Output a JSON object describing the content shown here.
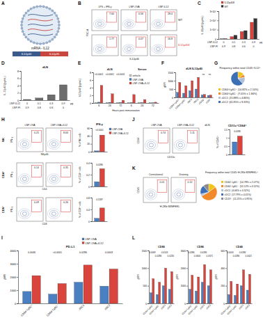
{
  "panel_labels": [
    "A",
    "B",
    "C",
    "D",
    "E",
    "F",
    "G",
    "H",
    "I",
    "J",
    "K",
    "L"
  ],
  "diagram": {
    "title": "mRNA - IL12",
    "segments": [
      "IL12p40",
      "IL12p35"
    ]
  },
  "flow_panels": [
    {
      "columns": [
        "LPS + IFN-γ",
        "LNP-OVA",
        "LNP-IL12"
      ],
      "rows": [
        "WT",
        "IL12p40fl"
      ],
      "x_label": "IL12p40",
      "y_label": "FSC-A",
      "gates": [
        [
          "7.60",
          "0.56",
          "28.4"
        ],
        [
          "1.77",
          "0.07",
          "16.8"
        ]
      ]
    },
    {
      "columns": [
        "LNP-OVA",
        "LNP-OVA+IL12"
      ],
      "rows": [
        "NK",
        "CD4⁺",
        "CD8⁺"
      ],
      "x_labels": [
        "NKp46",
        "CD4",
        "CD8"
      ],
      "y_label": "IFN-γ",
      "gates": [
        [
          "0.25",
          "8.63"
        ],
        [
          "0.14",
          "0.35"
        ],
        [
          "0.09",
          "0.26"
        ]
      ]
    },
    {
      "title": "dLN",
      "columns": [
        "LNP-OVA",
        "LNP-OVA+IL12"
      ],
      "x_label": "CD11c",
      "y_label": "CD64",
      "gates": [
        [
          "0.74",
          "1.11"
        ]
      ]
    },
    {
      "columns": [
        "Contralateral",
        "Draining"
      ],
      "x_label": "H-2Kb:SIINFEKL",
      "y_label": "CD45",
      "gates": [
        [
          "0.01",
          "0.12"
        ]
      ]
    }
  ],
  "chart_data": [
    {
      "type": "bar",
      "y_label": "IL-12p40 (pg/mL)",
      "categories": [
        null,
        null,
        null,
        null
      ],
      "series": [
        {
          "name": "IL12p40fl",
          "color": "#d9453d",
          "values": [
            200,
            2500,
            8000,
            18000
          ]
        },
        {
          "name": "WT",
          "color": "#333333",
          "values": [
            300,
            4000,
            9000,
            22000
          ]
        }
      ],
      "ylim": [
        0,
        30000
      ],
      "yticks": [
        0,
        {
          "value": 10000,
          "label": "1×10⁴"
        },
        {
          "value": 20000,
          "label": "2×10⁴"
        },
        {
          "value": 30000,
          "label": "3×10⁴"
        }
      ],
      "legend": "top-left",
      "dose_rows": [
        {
          "label": "LNP-IL12",
          "values": [
            "0",
            "0.1",
            "0.3",
            "0.9"
          ]
        },
        {
          "label": "LNP-Fl",
          "values": [
            "0.9",
            "0.8",
            "0.6",
            "0"
          ]
        }
      ],
      "dose_unit": "μg"
    },
    {
      "type": "bar",
      "title": "dLN",
      "y_label": "IL-12p40 (pg/mL)",
      "categories": [
        null,
        null,
        null,
        null
      ],
      "series": [
        {
          "color": "#6d6d6d",
          "values": [
            0.2,
            0.6,
            1.5,
            4.2
          ]
        }
      ],
      "ylim": [
        0,
        8
      ],
      "yticks": [
        0,
        2,
        4,
        6,
        8
      ],
      "dose_rows": [
        {
          "label": "LNP-IL12",
          "values": [
            "0",
            "0.1",
            "0.3",
            "0.9"
          ]
        },
        {
          "label": "LNP-Fl",
          "values": [
            "0.9",
            "0.8",
            "0.6",
            "0"
          ]
        }
      ],
      "dose_unit": "μg"
    },
    {
      "type": "bar",
      "y_label": "IL12p40 (pg/mL)",
      "x_label": "Hours post immunization",
      "group_labels": [
        "dLN",
        "Serum"
      ],
      "categories": [
        "6",
        "24",
        "72",
        "6",
        "24",
        "72"
      ],
      "series": [
        {
          "name": "vehicle",
          "color": "#c8c8c8",
          "values": [
            0.05,
            0.05,
            0.05,
            0.05,
            0.05,
            0.05
          ]
        },
        {
          "name": "LNP-OVA",
          "color": "#4a7fc1",
          "values": [
            0.2,
            0.15,
            0.1,
            0.1,
            0.08,
            0.05
          ]
        },
        {
          "name": "LNP-OVA+IL12",
          "color": "#d9453d",
          "values": [
            4.6,
            2.4,
            0.7,
            2.2,
            0.9,
            0.2
          ]
        }
      ],
      "ylim": [
        0,
        8
      ],
      "yticks": [
        0,
        2,
        4,
        6,
        8
      ],
      "legend": "top-right",
      "annotations": [
        "<0.0001",
        "<0.0001",
        "<0.0001",
        null,
        null,
        null
      ]
    },
    {
      "type": "bar",
      "title": "dLN IL12p40",
      "y_label": "gMFI",
      "categories": [
        "CD64⁺Ly6C⁺",
        "CD64⁺Ly6C⁻",
        "cDC1",
        "cDC2",
        "CD19⁺",
        "CD3⁺"
      ],
      "series": [
        {
          "color": "#4a7fc1",
          "values": [
            300,
            250,
            400,
            500,
            150,
            120
          ]
        },
        {
          "color": "#d9453d",
          "values": [
            900,
            700,
            1000,
            1200,
            180,
            140
          ]
        }
      ],
      "ylim": [
        0,
        1500
      ],
      "yticks": [
        0,
        500,
        1000,
        1500
      ],
      "annotations": [
        null,
        null,
        null,
        null,
        "ns",
        "ns"
      ]
    },
    {
      "type": "pie",
      "title": "Frequency within total CD45⁺IL12⁺",
      "categories": [
        "CD64⁺Ly6C⁺",
        "CD64⁺Ly6C⁻",
        "cDC1",
        "cDC2"
      ],
      "values": [
        14.82,
        7.05,
        15.88,
        61.85
      ],
      "value_labels": [
        "(14.82% ± 2.10%)",
        "(7.05% ± 1.84%)",
        "(15.88% ± 4.86%)",
        "(61.85% ± 9.33%)"
      ],
      "colors": [
        "#f2c318",
        "#f08a2a",
        "#aebfd6",
        "#3d6fb5"
      ]
    },
    {
      "type": "bar",
      "title": "IFN-γ",
      "y_label": "% of NK cells",
      "categories": [
        null
      ],
      "series": [
        {
          "name": "LNP-OVA",
          "color": "#4a7fc1",
          "values": [
            2
          ]
        },
        {
          "name": "LNP-OVA+IL12",
          "color": "#d9453d",
          "values": [
            42
          ]
        }
      ],
      "ylim": [
        0,
        60
      ],
      "yticks": [
        0,
        20,
        40,
        60
      ],
      "legend": "right",
      "annotations": [
        "<0.0001"
      ]
    },
    {
      "type": "bar",
      "y_label": "% of CD4⁺ cells",
      "categories": [
        null
      ],
      "series": [
        {
          "color": "#4a7fc1",
          "values": [
            0.08
          ]
        },
        {
          "color": "#d9453d",
          "values": [
            0.3
          ]
        }
      ],
      "ylim": [
        0,
        0.4
      ],
      "yticks": [
        0,
        0.2,
        0.4
      ],
      "annotations": [
        "0.0286"
      ]
    },
    {
      "type": "bar",
      "y_label": "% of CD8⁺ cells",
      "categories": [
        null
      ],
      "series": [
        {
          "color": "#4a7fc1",
          "values": [
            0.1
          ]
        },
        {
          "color": "#d9453d",
          "values": [
            0.45
          ]
        }
      ],
      "ylim": [
        0,
        0.8
      ],
      "yticks": [
        0,
        0.4,
        0.8
      ],
      "annotations": [
        "0.1587"
      ]
    },
    {
      "type": "bar",
      "title": "CD11c⁺CD64⁺",
      "y_label": "% of CD45⁺",
      "categories": [
        null
      ],
      "series": [
        {
          "color": "#4a7fc1",
          "values": [
            0.75
          ]
        },
        {
          "color": "#d9453d",
          "values": [
            1.1
          ]
        }
      ],
      "ylim": [
        0,
        1.5
      ],
      "yticks": [
        0,
        0.5,
        1,
        1.5
      ],
      "annotations": [
        "0.0286"
      ]
    },
    {
      "type": "pie",
      "title": "Frequency within total CD45⁺H-2Kb:SIINFEKL⁺",
      "categories": [
        "CD64⁺Ly6C⁺",
        "CD64⁺Ly6C⁻",
        "cDC1",
        "cDC2",
        "CD19⁺"
      ],
      "values": [
        14.78,
        52.12,
        4.06,
        17.79,
        11.25
      ],
      "value_labels": [
        "(14.78% ± 2.07%)",
        "(52.12% ± 4.52%)",
        "(4.06% ± 0.52%)",
        "(17.79% ± 4.41%)",
        "(11.25% ± 0.95%)"
      ],
      "colors": [
        "#f2c318",
        "#f08a2a",
        "#aebfd6",
        "#3d6fb5",
        "#8c8c8c"
      ]
    },
    {
      "type": "bar",
      "title": "PD-L1",
      "y_label": "gMFI",
      "categories": [
        "CD64⁺Ly6C⁺",
        "CD64⁺Ly6C⁻",
        "cDC1",
        "cDC2"
      ],
      "series": [
        {
          "name": "LNP-OVA",
          "color": "#4a7fc1",
          "values": [
            900,
            700,
            1600,
            1300
          ]
        },
        {
          "name": "LNP-OVA+IL12",
          "color": "#d9453d",
          "values": [
            2100,
            1500,
            2900,
            2600
          ]
        }
      ],
      "ylim": [
        0,
        4000
      ],
      "yticks": [
        0,
        1000,
        2000,
        3000,
        4000
      ],
      "legend": "top-right",
      "annotations": [
        "0.0046",
        "<0.0001",
        "0.0286",
        "0.0003"
      ]
    },
    {
      "type": "bar",
      "title": "CD80",
      "y_label": "gMFI",
      "categories": [
        "CD64⁺Ly6C⁺",
        "CD64⁺Ly6C⁻",
        "cDC1",
        "cDC2"
      ],
      "series": [
        {
          "color": "#4a7fc1",
          "values": [
            300,
            250,
            500,
            400
          ]
        },
        {
          "color": "#d9453d",
          "values": [
            700,
            600,
            1000,
            900
          ]
        }
      ],
      "ylim": [
        0,
        1500
      ],
      "yticks": [
        0,
        500,
        1000,
        1500
      ],
      "annotations": [
        "0.0069",
        "0.0286",
        "0.0143",
        "0.0226"
      ]
    },
    {
      "type": "bar",
      "title": "CD86",
      "y_label": "gMFI",
      "categories": [
        "CD64⁺Ly6C⁺",
        "CD64⁺Ly6C⁻",
        "cDC1",
        "cDC2"
      ],
      "series": [
        {
          "color": "#4a7fc1",
          "values": [
            800,
            700,
            1200,
            1000
          ]
        },
        {
          "color": "#d9453d",
          "values": [
            1600,
            1500,
            2200,
            1900
          ]
        }
      ],
      "ylim": [
        0,
        3000
      ],
      "yticks": [
        0,
        1000,
        2000,
        3000
      ],
      "annotations": [
        "0.0286",
        "0.0640",
        "0.0286",
        "0.0571"
      ]
    },
    {
      "type": "bar",
      "title": "CD40",
      "y_label": "gMFI",
      "categories": [
        "CD64⁺Ly6C⁺",
        "CD64⁺Ly6C⁻",
        "cDC1",
        "cDC2"
      ],
      "series": [
        {
          "color": "#4a7fc1",
          "values": [
            100,
            90,
            200,
            150
          ]
        },
        {
          "color": "#d9453d",
          "values": [
            250,
            220,
            380,
            330
          ]
        }
      ],
      "ylim": [
        0,
        600
      ],
      "yticks": [
        0,
        200,
        400,
        600
      ],
      "annotations": [
        "0.0003",
        "0.0286",
        "0.0286",
        "0.0021"
      ]
    }
  ]
}
